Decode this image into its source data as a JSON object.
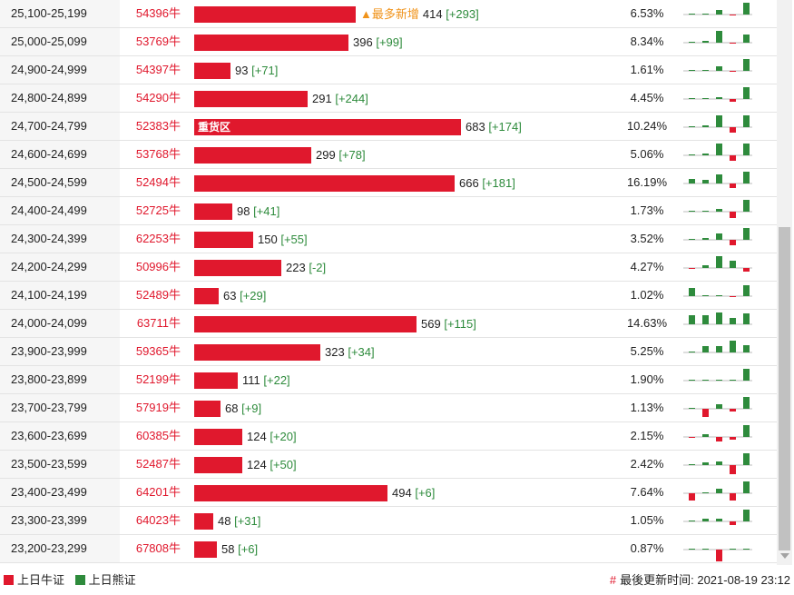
{
  "rows": [
    {
      "range": "25,100-25,199",
      "code": "54396牛",
      "bar": 414,
      "tag": "▲最多新增",
      "count": "414",
      "delta": "[+293]",
      "pct": "6.53%",
      "spark": [
        [
          0.1,
          1
        ],
        [
          0.1,
          1
        ],
        [
          0.4,
          1
        ],
        [
          0.1,
          -1
        ],
        [
          1.0,
          1
        ]
      ]
    },
    {
      "range": "25,000-25,099",
      "code": "53769牛",
      "bar": 396,
      "count": "396",
      "delta": "[+99]",
      "pct": "8.34%",
      "spark": [
        [
          0.1,
          1
        ],
        [
          0.15,
          1
        ],
        [
          1.0,
          1
        ],
        [
          0.1,
          -1
        ],
        [
          0.7,
          1
        ]
      ]
    },
    {
      "range": "24,900-24,999",
      "code": "54397牛",
      "bar": 93,
      "count": "93",
      "delta": "[+71]",
      "pct": "1.61%",
      "spark": [
        [
          0,
          1
        ],
        [
          0.1,
          1
        ],
        [
          0.4,
          1
        ],
        [
          0.1,
          -1
        ],
        [
          1.0,
          1
        ]
      ]
    },
    {
      "range": "24,800-24,899",
      "code": "54290牛",
      "bar": 291,
      "count": "291",
      "delta": "[+244]",
      "pct": "4.45%",
      "spark": [
        [
          0.1,
          1
        ],
        [
          0.1,
          1
        ],
        [
          0.15,
          1
        ],
        [
          0.2,
          -1
        ],
        [
          1.0,
          1
        ]
      ]
    },
    {
      "range": "24,700-24,799",
      "code": "52383牛",
      "bar": 683,
      "label": "重货区",
      "count": "683",
      "delta": "[+174]",
      "pct": "10.24%",
      "spark": [
        [
          0.1,
          1
        ],
        [
          0.15,
          1
        ],
        [
          1.0,
          1
        ],
        [
          0.45,
          -1
        ],
        [
          1.0,
          1
        ]
      ]
    },
    {
      "range": "24,600-24,699",
      "code": "53768牛",
      "bar": 299,
      "count": "299",
      "delta": "[+78]",
      "pct": "5.06%",
      "spark": [
        [
          0.1,
          1
        ],
        [
          0.15,
          1
        ],
        [
          1.0,
          1
        ],
        [
          0.45,
          -1
        ],
        [
          1.0,
          1
        ]
      ]
    },
    {
      "range": "24,500-24,599",
      "code": "52494牛",
      "bar": 666,
      "count": "666",
      "delta": "[+181]",
      "pct": "16.19%",
      "spark": [
        [
          0.35,
          1
        ],
        [
          0.3,
          1
        ],
        [
          0.8,
          1
        ],
        [
          0.4,
          -1
        ],
        [
          1.0,
          1
        ]
      ]
    },
    {
      "range": "24,400-24,499",
      "code": "52725牛",
      "bar": 98,
      "count": "98",
      "delta": "[+41]",
      "pct": "1.73%",
      "spark": [
        [
          0.1,
          1
        ],
        [
          0.1,
          1
        ],
        [
          0.2,
          1
        ],
        [
          0.5,
          -1
        ],
        [
          1.0,
          1
        ]
      ]
    },
    {
      "range": "24,300-24,399",
      "code": "62253牛",
      "bar": 150,
      "count": "150",
      "delta": "[+55]",
      "pct": "3.52%",
      "spark": [
        [
          0.1,
          1
        ],
        [
          0.15,
          1
        ],
        [
          0.5,
          1
        ],
        [
          0.45,
          -1
        ],
        [
          1.0,
          1
        ]
      ]
    },
    {
      "range": "24,200-24,299",
      "code": "50996牛",
      "bar": 223,
      "count": "223",
      "delta": "[-2]",
      "pct": "4.27%",
      "spark": [
        [
          0.1,
          -1
        ],
        [
          0.2,
          1
        ],
        [
          1.0,
          1
        ],
        [
          0.6,
          1
        ],
        [
          0.3,
          -1
        ]
      ]
    },
    {
      "range": "24,100-24,199",
      "code": "52489牛",
      "bar": 63,
      "count": "63",
      "delta": "[+29]",
      "pct": "1.02%",
      "spark": [
        [
          0.7,
          1
        ],
        [
          0.1,
          1
        ],
        [
          0,
          1
        ],
        [
          0.1,
          -1
        ],
        [
          0.9,
          1
        ]
      ]
    },
    {
      "range": "24,000-24,099",
      "code": "63711牛",
      "bar": 569,
      "count": "569",
      "delta": "[+115]",
      "pct": "14.63%",
      "spark": [
        [
          0.8,
          1
        ],
        [
          0.8,
          1
        ],
        [
          1.0,
          1
        ],
        [
          0.5,
          1
        ],
        [
          0.9,
          1
        ]
      ]
    },
    {
      "range": "23,900-23,999",
      "code": "59365牛",
      "bar": 323,
      "count": "323",
      "delta": "[+34]",
      "pct": "5.25%",
      "spark": [
        [
          0,
          1
        ],
        [
          0.5,
          1
        ],
        [
          0.5,
          1
        ],
        [
          1.0,
          1
        ],
        [
          0.6,
          1
        ]
      ]
    },
    {
      "range": "23,800-23,899",
      "code": "52199牛",
      "bar": 111,
      "count": "111",
      "delta": "[+22]",
      "pct": "1.90%",
      "spark": [
        [
          0,
          1
        ],
        [
          0,
          1
        ],
        [
          0.1,
          1
        ],
        [
          0,
          1
        ],
        [
          1.0,
          1
        ]
      ]
    },
    {
      "range": "23,700-23,799",
      "code": "57919牛",
      "bar": 68,
      "count": "68",
      "delta": "[+9]",
      "pct": "1.13%",
      "spark": [
        [
          0,
          1
        ],
        [
          0.7,
          -1
        ],
        [
          0.4,
          1
        ],
        [
          0.2,
          -1
        ],
        [
          1.0,
          1
        ]
      ]
    },
    {
      "range": "23,600-23,699",
      "code": "60385牛",
      "bar": 124,
      "count": "124",
      "delta": "[+20]",
      "pct": "2.15%",
      "spark": [
        [
          0.1,
          -1
        ],
        [
          0.2,
          1
        ],
        [
          0.4,
          -1
        ],
        [
          0.2,
          -1
        ],
        [
          1.0,
          1
        ]
      ]
    },
    {
      "range": "23,500-23,599",
      "code": "52487牛",
      "bar": 124,
      "count": "124",
      "delta": "[+50]",
      "pct": "2.42%",
      "spark": [
        [
          0.1,
          1
        ],
        [
          0.2,
          1
        ],
        [
          0.3,
          1
        ],
        [
          0.8,
          -1
        ],
        [
          1.0,
          1
        ]
      ]
    },
    {
      "range": "23,400-23,499",
      "code": "64201牛",
      "bar": 494,
      "count": "494",
      "delta": "[+6]",
      "pct": "7.64%",
      "spark": [
        [
          0.6,
          -1
        ],
        [
          0.1,
          1
        ],
        [
          0.4,
          1
        ],
        [
          0.6,
          -1
        ],
        [
          1.0,
          1
        ]
      ]
    },
    {
      "range": "23,300-23,399",
      "code": "64023牛",
      "bar": 48,
      "count": "48",
      "delta": "[+31]",
      "pct": "1.05%",
      "spark": [
        [
          0,
          1
        ],
        [
          0.2,
          1
        ],
        [
          0.2,
          1
        ],
        [
          0.3,
          -1
        ],
        [
          1.0,
          1
        ]
      ]
    },
    {
      "range": "23,200-23,299",
      "code": "67808牛",
      "bar": 58,
      "count": "58",
      "delta": "[+6]",
      "pct": "0.87%",
      "spark": [
        [
          0,
          1
        ],
        [
          0,
          1
        ],
        [
          1.0,
          -1
        ],
        [
          0.1,
          1
        ],
        [
          0.1,
          1
        ]
      ]
    }
  ],
  "bar_max": 683,
  "colors": {
    "bull": "#e0182d",
    "bear": "#2e8b3c",
    "tag": "#f0931a"
  },
  "legend": {
    "bull_label": "上日牛证",
    "bear_label": "上日熊证"
  },
  "footer": {
    "update_prefix": "最後更新时间:",
    "update_time": "2021-08-19 23:12",
    "hash": "#"
  }
}
